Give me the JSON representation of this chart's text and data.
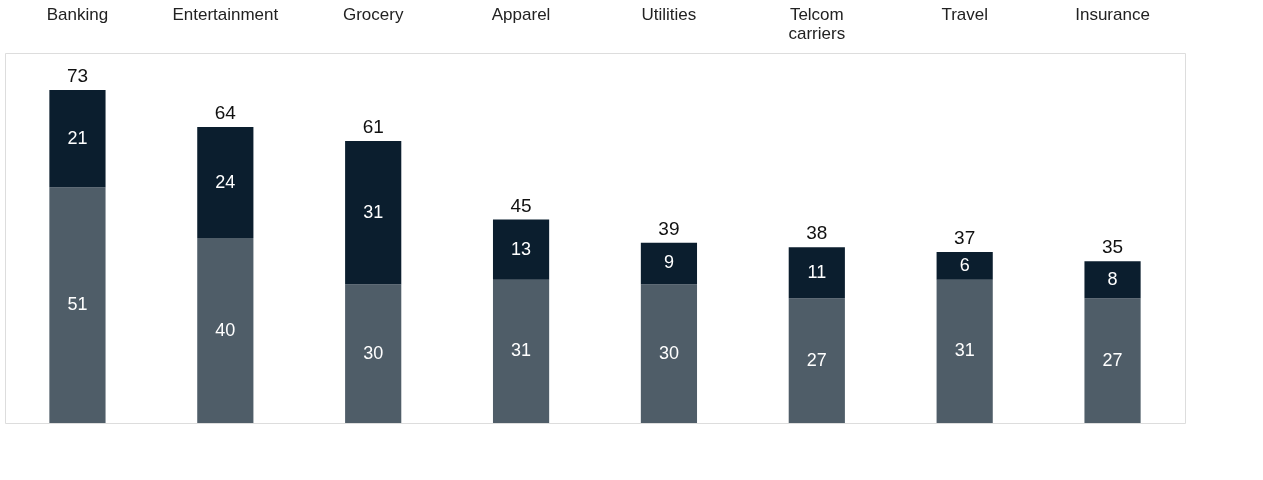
{
  "chart_data": {
    "type": "bar",
    "stacked": true,
    "data_labels": true,
    "categories": [
      "Banking",
      "Entertainment",
      "Grocery",
      "Apparel",
      "Utilities",
      "Telcom carriers",
      "Travel",
      "Insurance"
    ],
    "series": [
      {
        "color": "#4f5d68",
        "values": [
          51,
          40,
          30,
          31,
          30,
          27,
          31,
          27
        ]
      },
      {
        "color": "#0b1e2e",
        "values": [
          21,
          24,
          31,
          13,
          9,
          11,
          6,
          8
        ]
      }
    ],
    "totals": [
      "73",
      "64",
      "61",
      "45",
      "39",
      "38",
      "37",
      "35"
    ]
  }
}
